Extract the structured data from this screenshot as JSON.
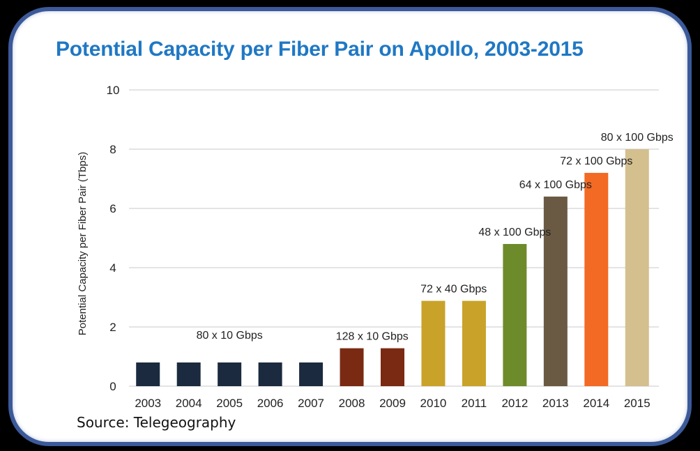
{
  "chart_data": {
    "type": "bar",
    "title": "Potential Capacity per Fiber Pair on Apollo, 2003-2015",
    "xlabel": "",
    "ylabel": "Potential Capacity per Fiber Pair (Tbps)",
    "ylim": [
      0,
      10
    ],
    "yticks": [
      0,
      2,
      4,
      6,
      8,
      10
    ],
    "grid": true,
    "categories": [
      "2003",
      "2004",
      "2005",
      "2006",
      "2007",
      "2008",
      "2009",
      "2010",
      "2011",
      "2012",
      "2013",
      "2014",
      "2015"
    ],
    "values": [
      0.8,
      0.8,
      0.8,
      0.8,
      0.8,
      1.28,
      1.28,
      2.88,
      2.88,
      4.8,
      6.4,
      7.2,
      8.0
    ],
    "colors": [
      "#1b2a3e",
      "#1b2a3e",
      "#1b2a3e",
      "#1b2a3e",
      "#1b2a3e",
      "#7a2a12",
      "#7a2a12",
      "#c9a22a",
      "#c9a22a",
      "#6e8b2b",
      "#6b5a43",
      "#f26a24",
      "#d4bf8f"
    ],
    "annotations": [
      {
        "text": "80 x 10 Gbps",
        "category": "2005",
        "value": 0.8
      },
      {
        "text": "128 x 10 Gbps",
        "category": "2008",
        "value": 1.28,
        "anchor_between": [
          "2008",
          "2009"
        ]
      },
      {
        "text": "72 x 40 Gbps",
        "category": "2010",
        "value": 2.88,
        "anchor_between": [
          "2010",
          "2011"
        ]
      },
      {
        "text": "48 x 100 Gbps",
        "category": "2012",
        "value": 4.8
      },
      {
        "text": "64 x 100 Gbps",
        "category": "2013",
        "value": 6.4
      },
      {
        "text": "72 x 100 Gbps",
        "category": "2014",
        "value": 7.2
      },
      {
        "text": "80 x 100 Gbps",
        "category": "2015",
        "value": 8.0
      }
    ]
  },
  "source": "Source: Telegeography",
  "colors": {
    "frame": "#3c5a9a",
    "title": "#1f78c4",
    "grid": "#c8c8c8"
  }
}
